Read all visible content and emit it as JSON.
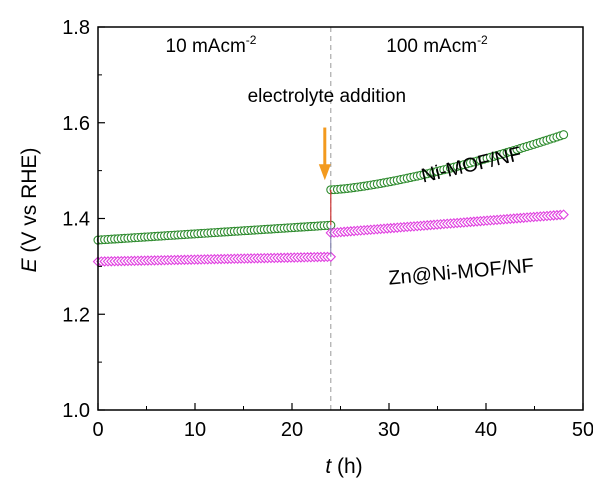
{
  "chart_data": {
    "type": "scatter",
    "xlabel": {
      "var": "t",
      "unit": "(h)"
    },
    "ylabel": {
      "var": "E",
      "unit": "(V vs RHE)"
    },
    "xlim": [
      0,
      50
    ],
    "ylim": [
      1.0,
      1.8
    ],
    "xticks": [
      "0",
      "10",
      "20",
      "30",
      "40",
      "50"
    ],
    "yticks": [
      "1.0",
      "1.2",
      "1.4",
      "1.6",
      "1.8"
    ],
    "regions": [
      {
        "label": "10 mAcm",
        "sup": "-2",
        "x_range": [
          0,
          24
        ]
      },
      {
        "label": "100 mAcm",
        "sup": "-2",
        "x_range": [
          24,
          48
        ]
      }
    ],
    "divider_x": 24,
    "annotation": {
      "text": "electrolyte addition",
      "x": 24,
      "arrow_from_y": 1.59,
      "arrow_to_y": 1.48
    },
    "series": [
      {
        "name": "Ni-MOF/NF",
        "color": "#2e8b2e",
        "marker": "circle",
        "segments": [
          {
            "x": [
              0,
              24
            ],
            "y": [
              1.355,
              1.386
            ]
          },
          {
            "x": [
              24,
              48
            ],
            "y": [
              1.46,
              1.575
            ],
            "curve": 1.4
          }
        ]
      },
      {
        "name": "Zn@Ni-MOF/NF",
        "color": "#e040e0",
        "marker": "diamond",
        "segments": [
          {
            "x": [
              0,
              24
            ],
            "y": [
              1.31,
              1.32
            ]
          },
          {
            "x": [
              24,
              48
            ],
            "y": [
              1.37,
              1.408
            ]
          }
        ]
      }
    ]
  }
}
